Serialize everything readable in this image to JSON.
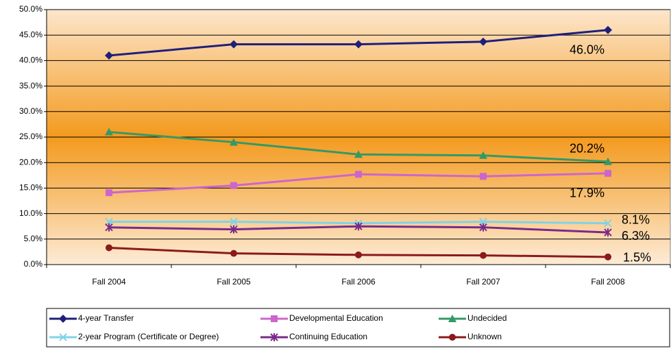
{
  "chart_data": {
    "type": "line",
    "categories": [
      "Fall 2004",
      "Fall 2005",
      "Fall 2006",
      "Fall 2007",
      "Fall 2008"
    ],
    "series": [
      {
        "name": "4-year Transfer",
        "color": "#1f1f7a",
        "marker": "diamond",
        "values": [
          41.0,
          43.2,
          43.2,
          43.7,
          46.0
        ],
        "value_labels": [
          null,
          null,
          null,
          null,
          "46.0%"
        ]
      },
      {
        "name": "Developmental Education",
        "color": "#cc66cc",
        "marker": "square",
        "values": [
          14.1,
          15.5,
          17.7,
          17.3,
          17.9
        ],
        "value_labels": [
          null,
          null,
          null,
          null,
          "17.9%"
        ]
      },
      {
        "name": "Undecided",
        "color": "#339966",
        "marker": "triangle",
        "values": [
          26.0,
          24.0,
          21.6,
          21.4,
          20.2
        ],
        "value_labels": [
          null,
          null,
          null,
          null,
          "20.2%"
        ]
      },
      {
        "name": "2-year Program (Certificate or Degree)",
        "color": "#7fd4e6",
        "marker": "x",
        "values": [
          8.4,
          8.4,
          8.1,
          8.4,
          8.1
        ],
        "value_labels": [
          null,
          null,
          null,
          null,
          "8.1%"
        ]
      },
      {
        "name": "Continuing Education",
        "color": "#7a2a8a",
        "marker": "star",
        "values": [
          7.3,
          6.9,
          7.5,
          7.3,
          6.3
        ],
        "value_labels": [
          null,
          null,
          null,
          null,
          "6.3%"
        ]
      },
      {
        "name": "Unknown",
        "color": "#8b1a1a",
        "marker": "circle",
        "values": [
          3.3,
          2.2,
          1.9,
          1.8,
          1.5
        ],
        "value_labels": [
          null,
          null,
          null,
          null,
          "1.5%"
        ]
      }
    ],
    "ylim": [
      0,
      50
    ],
    "yticks": [
      {
        "value": 0,
        "label": "0.0%"
      },
      {
        "value": 5,
        "label": "5.0%"
      },
      {
        "value": 10,
        "label": "10.0%"
      },
      {
        "value": 15,
        "label": "15.0%"
      },
      {
        "value": 20,
        "label": "20.0%"
      },
      {
        "value": 25,
        "label": "25.0%"
      },
      {
        "value": 30,
        "label": "30.0%"
      },
      {
        "value": 35,
        "label": "35.0%"
      },
      {
        "value": 40,
        "label": "40.0%"
      },
      {
        "value": 45,
        "label": "45.0%"
      },
      {
        "value": 50,
        "label": "50.0%"
      }
    ],
    "grid": true
  }
}
